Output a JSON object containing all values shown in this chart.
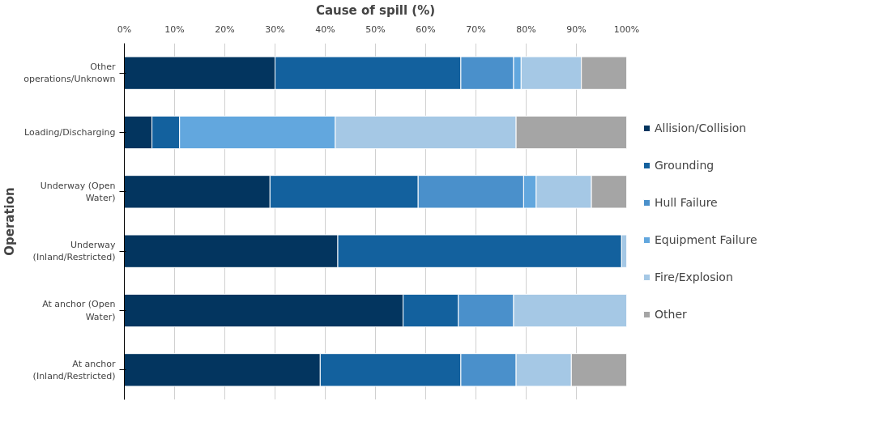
{
  "chart_data": {
    "type": "bar",
    "orientation": "horizontal",
    "stacked": true,
    "xlabel": "Cause of spill (%)",
    "ylabel": "Operation",
    "categories": [
      "Other operations/Unknown",
      "Loading/Discharging",
      "Underway (Open Water)",
      "Underway (Inland/Restricted)",
      "At anchor (Open Water)",
      "At anchor (Inland/Restricted)"
    ],
    "series": [
      {
        "name": "Allision/Collision",
        "color": "#03355f",
        "values": [
          30,
          5.5,
          29,
          42.5,
          55.5,
          39
        ]
      },
      {
        "name": "Grounding",
        "color": "#13619e",
        "values": [
          37,
          5.5,
          29.5,
          56.5,
          11,
          28
        ]
      },
      {
        "name": "Hull Failure",
        "color": "#4a90cb",
        "values": [
          10.5,
          0,
          21,
          0,
          11,
          11
        ]
      },
      {
        "name": "Equipment Failure",
        "color": "#62a7de",
        "values": [
          1.5,
          31,
          2.5,
          0,
          0,
          0
        ]
      },
      {
        "name": "Fire/Explosion",
        "color": "#a5c8e5",
        "values": [
          12,
          36,
          11,
          1,
          22.5,
          11
        ]
      },
      {
        "name": "Other",
        "color": "#a5a5a5",
        "values": [
          9,
          22,
          7,
          0,
          0,
          11
        ]
      }
    ],
    "xlim": [
      0,
      100
    ],
    "xticks": [
      {
        "value": 0,
        "label": "0%"
      },
      {
        "value": 10,
        "label": "10%"
      },
      {
        "value": 20,
        "label": "20%"
      },
      {
        "value": 30,
        "label": "30%"
      },
      {
        "value": 40,
        "label": "40%"
      },
      {
        "value": 50,
        "label": "50%"
      },
      {
        "value": 60,
        "label": "60%"
      },
      {
        "value": 70,
        "label": "70%"
      },
      {
        "value": 80,
        "label": "80%"
      },
      {
        "value": 90,
        "label": "90%"
      },
      {
        "value": 100,
        "label": "100%"
      }
    ],
    "grid": "x",
    "legend": "right"
  }
}
